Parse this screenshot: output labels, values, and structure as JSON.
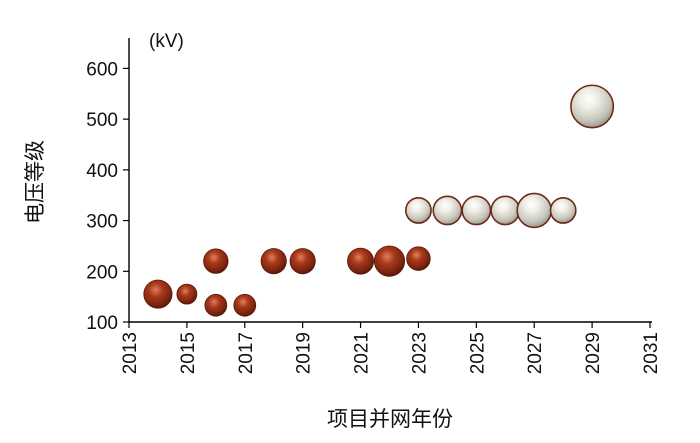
{
  "chart_data": {
    "type": "scatter",
    "ylabel": "电压等级",
    "xlabel": "项目并网年份",
    "y_unit": "(kV)",
    "xlim": [
      2013,
      2031
    ],
    "ylim": [
      100,
      660
    ],
    "x_ticks": [
      2013,
      2015,
      2017,
      2019,
      2021,
      2023,
      2025,
      2027,
      2029,
      2031
    ],
    "x_tick_labels": [
      "2013",
      "2015",
      "2017",
      "2019",
      "2021",
      "2023",
      "2025",
      "2027",
      "2029",
      "2031"
    ],
    "y_ticks": [
      100,
      200,
      300,
      400,
      500,
      600
    ],
    "y_tick_labels": [
      "100",
      "200",
      "300",
      "400",
      "500",
      "600"
    ],
    "grid": false,
    "series": [
      {
        "color": "#8a2a12",
        "points": [
          {
            "x": 2014,
            "y": 155,
            "size": 2.0
          },
          {
            "x": 2015,
            "y": 155,
            "size": 1.0
          },
          {
            "x": 2016,
            "y": 220,
            "size": 1.5
          },
          {
            "x": 2016,
            "y": 133,
            "size": 1.2
          },
          {
            "x": 2017,
            "y": 133,
            "size": 1.2
          },
          {
            "x": 2018,
            "y": 220,
            "size": 1.6
          },
          {
            "x": 2019,
            "y": 220,
            "size": 1.6
          },
          {
            "x": 2021,
            "y": 220,
            "size": 1.7
          },
          {
            "x": 2022,
            "y": 220,
            "size": 2.3
          },
          {
            "x": 2023,
            "y": 225,
            "size": 1.4
          }
        ]
      },
      {
        "color": "#e2e1d8",
        "points": [
          {
            "x": 2023,
            "y": 320,
            "size": 1.6
          },
          {
            "x": 2024,
            "y": 320,
            "size": 2.0
          },
          {
            "x": 2025,
            "y": 320,
            "size": 2.0
          },
          {
            "x": 2026,
            "y": 320,
            "size": 2.0
          },
          {
            "x": 2027,
            "y": 320,
            "size": 2.9
          },
          {
            "x": 2028,
            "y": 320,
            "size": 1.6
          },
          {
            "x": 2029,
            "y": 525,
            "size": 4.5
          }
        ]
      }
    ]
  }
}
